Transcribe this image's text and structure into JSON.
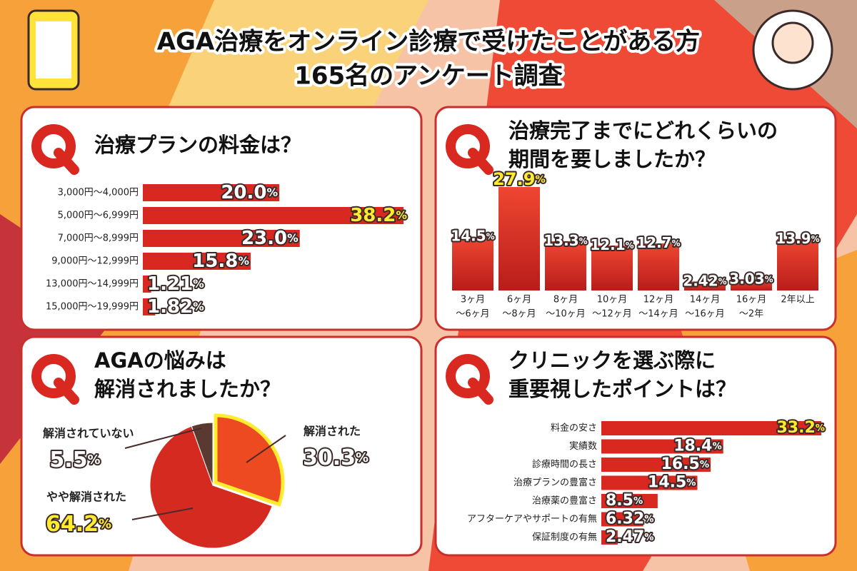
{
  "title": [
    "AGA治療をオンライン診療で受けたことがある方",
    "165名のアンケート調査"
  ],
  "chart_data": [
    {
      "type": "hbar",
      "title": [
        "治療プランの料金は？"
      ],
      "categories": [
        "3,000円～4,000円",
        "5,000円～6,999円",
        "7,000円～8,999円",
        "9,000円～12,999円",
        "13,000円～14,999円",
        "15,000円～19,999円"
      ],
      "values": [
        20.0,
        38.2,
        23.0,
        15.8,
        1.21,
        1.82
      ],
      "value_labels": [
        "20.0%",
        "38.2%",
        "23.0%",
        "15.8%",
        "1.21%",
        "1.82%"
      ],
      "color": "#d8281f"
    },
    {
      "type": "bar",
      "title": [
        "治療完了までにどれくらいの",
        "期間を要しましたか？"
      ],
      "categories": [
        [
          "3ヶ月",
          "～6ヶ月"
        ],
        [
          "6ヶ月",
          "～8ヶ月"
        ],
        [
          "8ヶ月",
          "～10ヶ月"
        ],
        [
          "10ヶ月",
          "～12ヶ月"
        ],
        [
          "12ヶ月",
          "～14ヶ月"
        ],
        [
          "14ヶ月",
          "～16ヶ月"
        ],
        [
          "16ヶ月",
          "～2年"
        ],
        [
          "2年以上"
        ]
      ],
      "values": [
        14.5,
        27.9,
        13.3,
        12.1,
        12.7,
        2.42,
        3.03,
        13.9
      ],
      "value_labels": [
        "14.5%",
        "27.9%",
        "13.3%",
        "12.1%",
        "12.7%",
        "2.42%",
        "3.03%",
        "13.9%"
      ],
      "color": "#d8281f"
    },
    {
      "type": "pie",
      "title": [
        "AGAの悩みは",
        "解消されましたか？"
      ],
      "categories": [
        "解消された",
        "やや解消された",
        "解消されていない"
      ],
      "values": [
        30.3,
        64.2,
        5.5
      ],
      "value_labels": [
        "30.3%",
        "64.2%",
        "5.5%"
      ],
      "colors": [
        "#ee4a22",
        "#d42a20",
        "#5a3a30"
      ]
    },
    {
      "type": "hbar",
      "title": [
        "クリニックを選ぶ際に",
        "重要視したポイントは？"
      ],
      "categories": [
        "料金の安さ",
        "実績数",
        "診療時間の長さ",
        "治療プランの豊富さ",
        "治療薬の豊富さ",
        "アフターケアやサポートの有無",
        "保証制度の有無"
      ],
      "values": [
        33.2,
        18.4,
        16.5,
        14.5,
        8.5,
        6.32,
        2.47
      ],
      "value_labels": [
        "33.2%",
        "18.4%",
        "16.5%",
        "14.5%",
        "8.5%",
        "6.32%",
        "2.47%"
      ],
      "color": "#d8281f"
    }
  ]
}
